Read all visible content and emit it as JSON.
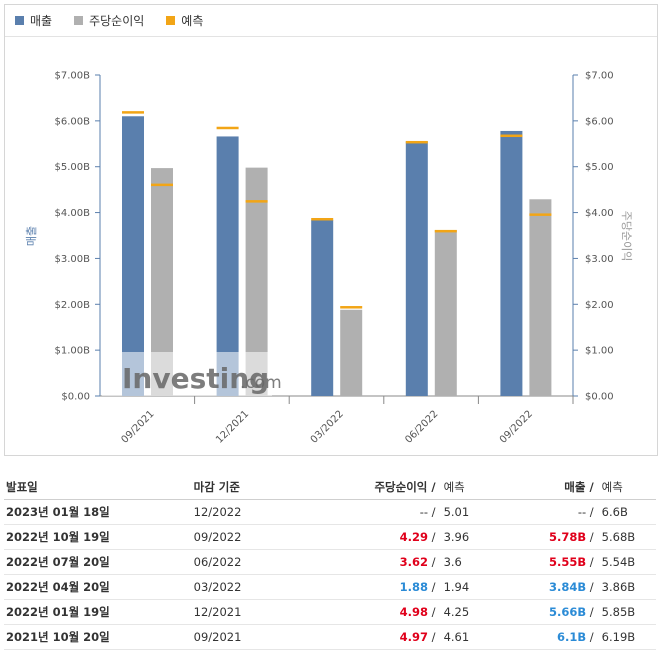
{
  "legend": {
    "revenue": "매출",
    "eps": "주당순이익",
    "forecast": "예측"
  },
  "colors": {
    "revenue": "#5a7fad",
    "eps": "#b0b0b0",
    "forecast": "#f2a516",
    "positive": "#e0001b",
    "negative": "#2b8bd6"
  },
  "watermark": {
    "brand": "Investing",
    "suffix": ".com"
  },
  "chart_data": {
    "type": "bar",
    "categories": [
      "09/2021",
      "12/2021",
      "03/2022",
      "06/2022",
      "09/2022"
    ],
    "series": [
      {
        "name": "매출",
        "axis": "left",
        "values": [
          6.1,
          5.66,
          3.84,
          5.55,
          5.78
        ]
      },
      {
        "name": "주당순이익",
        "axis": "right",
        "values": [
          4.97,
          4.98,
          1.88,
          3.62,
          4.29
        ]
      }
    ],
    "forecast": {
      "name": "예측",
      "revenue": [
        6.19,
        5.85,
        3.86,
        5.54,
        5.68
      ],
      "eps": [
        4.61,
        4.25,
        1.94,
        3.6,
        3.96
      ]
    },
    "ylabel": "매출",
    "y2label": "주당순이익",
    "ylim": [
      0,
      7
    ],
    "y2lim": [
      0,
      7
    ],
    "yticks": [
      "$0.00",
      "$1.00B",
      "$2.00B",
      "$3.00B",
      "$4.00B",
      "$5.00B",
      "$6.00B",
      "$7.00B"
    ],
    "y2ticks": [
      "$0.00",
      "$1.00",
      "$2.00",
      "$3.00",
      "$4.00",
      "$5.00",
      "$6.00",
      "$7.00"
    ]
  },
  "table": {
    "headers": {
      "date": "발표일",
      "period": "마감 기준",
      "eps": "주당순이익 /",
      "eps_forecast": "예측",
      "revenue": "매출 /",
      "revenue_forecast": "예측"
    },
    "rows": [
      {
        "date": "2023년 01월 18일",
        "period": "12/2022",
        "eps": "--",
        "eps_color": "neutral",
        "eps_forecast": "5.01",
        "revenue": "--",
        "revenue_color": "neutral",
        "revenue_forecast": "6.6B"
      },
      {
        "date": "2022년 10월 19일",
        "period": "09/2022",
        "eps": "4.29",
        "eps_color": "red",
        "eps_forecast": "3.96",
        "revenue": "5.78B",
        "revenue_color": "red",
        "revenue_forecast": "5.68B"
      },
      {
        "date": "2022년 07월 20일",
        "period": "06/2022",
        "eps": "3.62",
        "eps_color": "red",
        "eps_forecast": "3.6",
        "revenue": "5.55B",
        "revenue_color": "red",
        "revenue_forecast": "5.54B"
      },
      {
        "date": "2022년 04월 20일",
        "period": "03/2022",
        "eps": "1.88",
        "eps_color": "blue",
        "eps_forecast": "1.94",
        "revenue": "3.84B",
        "revenue_color": "blue",
        "revenue_forecast": "3.86B"
      },
      {
        "date": "2022년 01월 19일",
        "period": "12/2021",
        "eps": "4.98",
        "eps_color": "red",
        "eps_forecast": "4.25",
        "revenue": "5.66B",
        "revenue_color": "blue",
        "revenue_forecast": "5.85B"
      },
      {
        "date": "2021년 10월 20일",
        "period": "09/2021",
        "eps": "4.97",
        "eps_color": "red",
        "eps_forecast": "4.61",
        "revenue": "6.1B",
        "revenue_color": "blue",
        "revenue_forecast": "6.19B"
      }
    ]
  }
}
